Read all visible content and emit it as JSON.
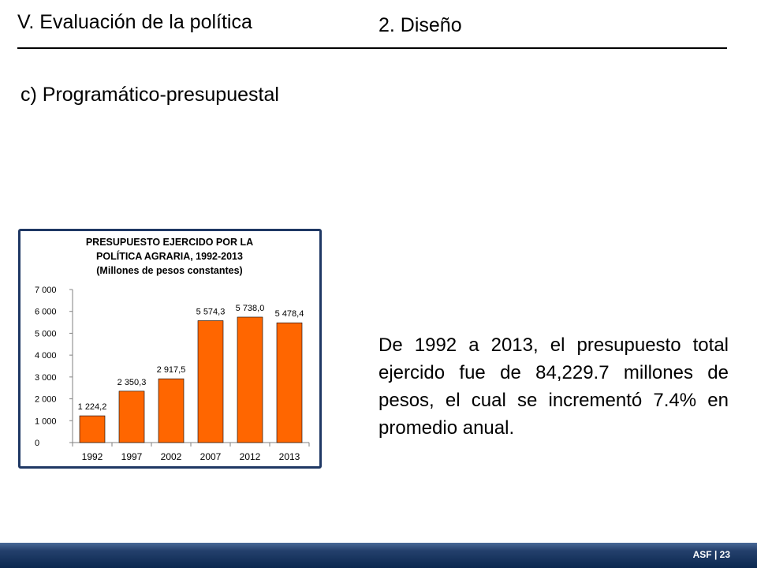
{
  "header": {
    "section_title": "V. Evaluación de la política",
    "topic_title": "2. Diseño"
  },
  "subtitle": "c) Programático-presupuestal",
  "body_text": "De 1992 a 2013, el presupuesto total ejercido fue de 84,229.7 millones de pesos, el cual se incrementó 7.4% en promedio anual.",
  "footer": {
    "label": "ASF | 23"
  },
  "colors": {
    "bar": "#ff6600",
    "frame": "#1f3864",
    "footer": "#24406c"
  },
  "chart_data": {
    "type": "bar",
    "title": [
      "PRESUPUESTO EJERCIDO POR LA",
      "POLÍTICA AGRARIA, 1992-2013",
      "(Millones de pesos constantes)"
    ],
    "categories": [
      "1992",
      "1997",
      "2002",
      "2007",
      "2012",
      "2013"
    ],
    "values": [
      1224.2,
      2350.3,
      2917.5,
      5574.3,
      5738.0,
      5478.4
    ],
    "data_labels": [
      "1 224,2",
      "2 350,3",
      "2 917,5",
      "5 574,3",
      "5 738,0",
      "5 478,4"
    ],
    "y_ticks": [
      0,
      1000,
      2000,
      3000,
      4000,
      5000,
      6000,
      7000
    ],
    "y_tick_labels": [
      "0",
      "1 000",
      "2 000",
      "3 000",
      "4 000",
      "5 000",
      "6 000",
      "7 000"
    ],
    "ylim": [
      0,
      7000
    ],
    "grid": false,
    "legend": "none"
  }
}
